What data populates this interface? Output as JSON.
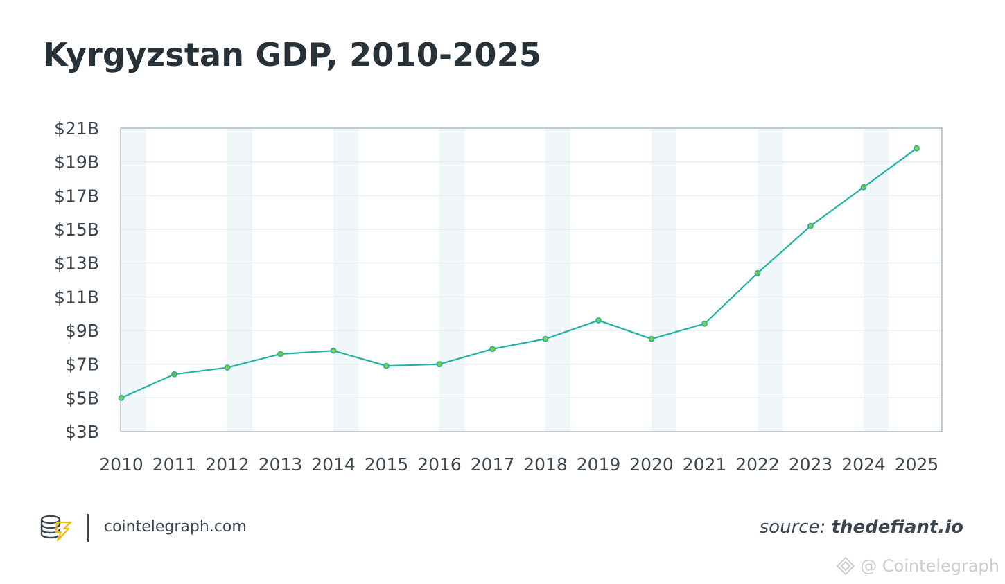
{
  "title": "Kyrgyzstan GDP, 2010-2025",
  "footer": {
    "site": "cointelegraph.com",
    "source_prefix": "source: ",
    "source_name": "thedefiant.io",
    "watermark": "@ Cointelegraph"
  },
  "colors": {
    "line": "#1fb3a4",
    "marker": "#8cc63f",
    "band": "#f1f6f8",
    "grid": "#e3eaee",
    "axis": "#bcccd5",
    "logo_accent": "#f2b705"
  },
  "chart_data": {
    "type": "line",
    "title": "Kyrgyzstan GDP, 2010-2025",
    "xlabel": "",
    "ylabel": "",
    "categories": [
      "2010",
      "2011",
      "2012",
      "2013",
      "2014",
      "2015",
      "2016",
      "2017",
      "2018",
      "2019",
      "2020",
      "2021",
      "2022",
      "2023",
      "2024",
      "2025"
    ],
    "values": [
      5.0,
      6.4,
      6.8,
      7.6,
      7.8,
      6.9,
      7.0,
      7.9,
      8.5,
      9.6,
      8.5,
      9.4,
      12.4,
      15.2,
      17.5,
      19.8
    ],
    "ylim": [
      3,
      21
    ],
    "yticks": [
      3,
      5,
      7,
      9,
      11,
      13,
      15,
      17,
      19,
      21
    ],
    "ytick_labels": [
      "$3B",
      "$5B",
      "$7B",
      "$9B",
      "$11B",
      "$13B",
      "$15B",
      "$17B",
      "$19B",
      "$21B"
    ],
    "grid": true,
    "alternating_column_bands": true
  }
}
